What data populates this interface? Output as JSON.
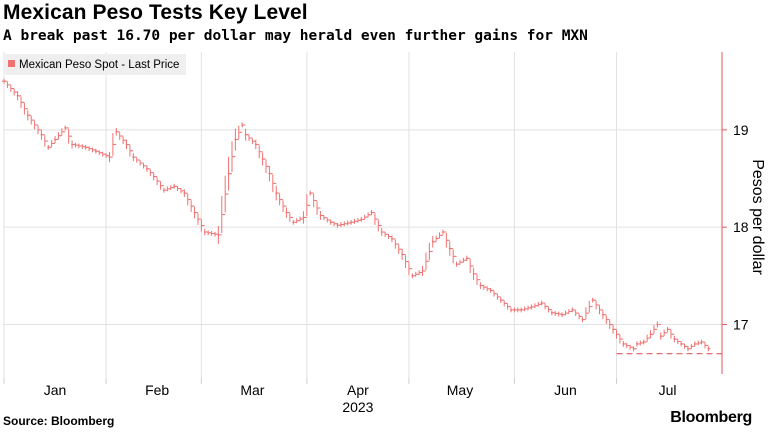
{
  "header": {
    "title": "Mexican Peso Tests Key Level",
    "subtitle": "A break past 16.70 per dollar may herald even further gains for MXN"
  },
  "footer": {
    "source": "Source: Bloomberg",
    "brand": "Bloomberg"
  },
  "colors": {
    "series": "#f07272",
    "grid": "#e2e2e2",
    "axis": "#e05a5a",
    "level": "#e05a5a"
  },
  "chart_data": {
    "type": "line",
    "title": "Mexican Peso Tests Key Level",
    "subtitle": "A break past 16.70 per dollar may herald even further gains for MXN",
    "ylabel": "Pesos per dollar",
    "xlabel": "2023",
    "ylim": [
      16.45,
      19.8
    ],
    "yticks": [
      17,
      18,
      19
    ],
    "ytick_labels": [
      "17",
      "18",
      "19"
    ],
    "grid": true,
    "legend": {
      "position": "top-left",
      "entries": [
        "Mexican Peso Spot - Last Price"
      ]
    },
    "xlim": [
      0,
      211
    ],
    "x_ticks": [
      {
        "label": "Jan",
        "day": 15
      },
      {
        "label": "Feb",
        "day": 45
      },
      {
        "label": "Mar",
        "day": 73
      },
      {
        "label": "Apr",
        "day": 104
      },
      {
        "label": "May",
        "day": 134
      },
      {
        "label": "Jun",
        "day": 165
      },
      {
        "label": "Jul",
        "day": 195
      }
    ],
    "x_dividers": [
      0,
      30,
      58,
      89,
      119,
      150,
      180
    ],
    "reference_line": {
      "value": 16.7,
      "x_from": 180,
      "x_to": 211,
      "style": "dashed"
    },
    "series": [
      {
        "name": "Mexican Peso Spot - Last Price",
        "x": [
          0,
          4,
          7,
          11,
          13,
          15,
          18,
          20,
          24,
          27,
          31,
          33,
          36,
          38,
          42,
          44,
          47,
          50,
          53,
          56,
          59,
          63,
          66,
          68,
          70,
          71,
          74,
          76,
          78,
          80,
          83,
          85,
          88,
          90,
          93,
          96,
          98,
          102,
          105,
          108,
          111,
          114,
          117,
          120,
          123,
          126,
          129,
          131,
          133,
          136,
          138,
          140,
          143,
          146,
          149,
          152,
          155,
          158,
          161,
          164,
          167,
          170,
          173,
          176,
          179,
          182,
          185,
          186,
          188,
          190,
          192,
          193,
          195,
          197,
          199,
          201,
          203,
          205,
          207
        ],
        "values": [
          19.5,
          19.35,
          19.15,
          18.95,
          18.82,
          18.9,
          19.02,
          18.85,
          18.82,
          18.78,
          18.72,
          18.98,
          18.85,
          18.72,
          18.6,
          18.52,
          18.38,
          18.42,
          18.35,
          18.15,
          17.95,
          17.92,
          18.55,
          18.9,
          19.05,
          18.95,
          18.85,
          18.7,
          18.55,
          18.35,
          18.15,
          18.05,
          18.1,
          18.35,
          18.12,
          18.05,
          18.02,
          18.05,
          18.08,
          18.15,
          17.95,
          17.88,
          17.72,
          17.5,
          17.55,
          17.85,
          17.95,
          17.78,
          17.62,
          17.68,
          17.52,
          17.4,
          17.35,
          17.25,
          17.15,
          17.15,
          17.18,
          17.22,
          17.12,
          17.1,
          17.15,
          17.05,
          17.25,
          17.1,
          16.95,
          16.8,
          16.75,
          16.8,
          16.82,
          16.9,
          17.0,
          16.88,
          16.95,
          16.85,
          16.8,
          16.75,
          16.8,
          16.82,
          16.75
        ],
        "color": "#f07272"
      }
    ]
  }
}
